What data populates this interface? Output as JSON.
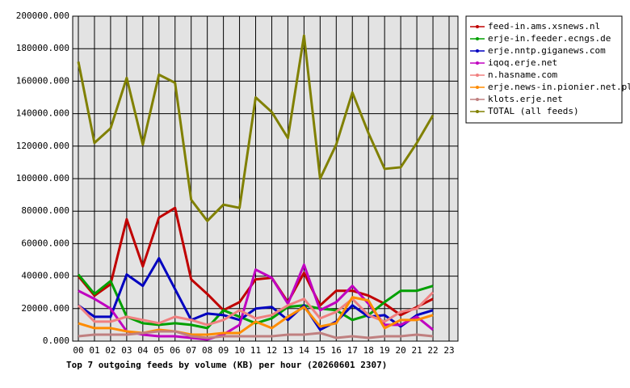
{
  "chart_data": {
    "type": "line",
    "title": "Top 7 outgoing feeds by volume (KB) per hour (20260601 2307)",
    "categories": [
      "00",
      "01",
      "02",
      "03",
      "04",
      "05",
      "06",
      "07",
      "08",
      "09",
      "10",
      "11",
      "12",
      "13",
      "14",
      "15",
      "16",
      "17",
      "18",
      "19",
      "20",
      "21",
      "22",
      "23"
    ],
    "ylim": [
      0,
      200000
    ],
    "yticks": [
      {
        "value": 0,
        "label": "0.000"
      },
      {
        "value": 20000,
        "label": "20000.000"
      },
      {
        "value": 40000,
        "label": "40000.000"
      },
      {
        "value": 60000,
        "label": "60000.000"
      },
      {
        "value": 80000,
        "label": "80000.000"
      },
      {
        "value": 100000,
        "label": "100000.000"
      },
      {
        "value": 120000,
        "label": "120000.000"
      },
      {
        "value": 140000,
        "label": "140000.000"
      },
      {
        "value": 160000,
        "label": "160000.000"
      },
      {
        "value": 180000,
        "label": "180000.000"
      },
      {
        "value": 200000,
        "label": "200000.000"
      }
    ],
    "grid": true,
    "legend": "right",
    "series": [
      {
        "name": "feed-in.ams.xsnews.nl",
        "color": "#c00000",
        "values": [
          40000,
          28000,
          35000,
          75000,
          46000,
          76000,
          82000,
          38000,
          29000,
          19000,
          24000,
          38000,
          39000,
          24000,
          42000,
          22000,
          31000,
          31000,
          28000,
          23000,
          16000,
          21000,
          26000,
          null
        ]
      },
      {
        "name": "erje-in.feeder.ecngs.de",
        "color": "#00a000",
        "values": [
          41000,
          29000,
          37000,
          15000,
          11000,
          10000,
          11000,
          10000,
          8000,
          19000,
          15000,
          11000,
          14000,
          21000,
          22000,
          20000,
          19000,
          13000,
          16000,
          24000,
          31000,
          31000,
          34000,
          null
        ]
      },
      {
        "name": "erje.nntp.giganews.com",
        "color": "#0000c0",
        "values": [
          22000,
          15000,
          15000,
          41000,
          34000,
          51000,
          32000,
          13000,
          17000,
          16000,
          13000,
          20000,
          21000,
          13000,
          22000,
          7000,
          12000,
          22000,
          15000,
          16000,
          9000,
          16000,
          19000,
          null
        ]
      },
      {
        "name": "iqoq.erje.net",
        "color": "#c000c0",
        "values": [
          31000,
          26000,
          20000,
          6000,
          4000,
          3000,
          3000,
          2000,
          1000,
          4000,
          10000,
          44000,
          39000,
          23000,
          47000,
          19000,
          24000,
          34000,
          23000,
          10000,
          10000,
          15000,
          7000,
          null
        ]
      },
      {
        "name": "n.hasname.com",
        "color": "#f08080",
        "values": [
          22000,
          12000,
          12000,
          15000,
          13000,
          11000,
          15000,
          13000,
          10000,
          13000,
          19000,
          14000,
          16000,
          22000,
          26000,
          14000,
          18000,
          26000,
          16000,
          12000,
          18000,
          20000,
          30000,
          null
        ]
      },
      {
        "name": "erje.news-in.pionier.net.pl",
        "color": "#ff8c00",
        "values": [
          11000,
          8000,
          8000,
          6000,
          5000,
          7000,
          6000,
          4000,
          4000,
          5000,
          5000,
          12000,
          8000,
          15000,
          21000,
          9000,
          11000,
          27000,
          25000,
          8000,
          13000,
          13000,
          16000,
          null
        ]
      },
      {
        "name": "klots.erje.net",
        "color": "#c08080",
        "values": [
          3000,
          4000,
          4000,
          4000,
          5000,
          6000,
          6000,
          3000,
          2000,
          3000,
          3000,
          3000,
          3000,
          4000,
          4000,
          5000,
          2000,
          3000,
          2000,
          3000,
          3000,
          4000,
          3000,
          null
        ]
      },
      {
        "name": "TOTAL (all feeds)",
        "color": "#808000",
        "values": [
          172000,
          122000,
          131000,
          162000,
          121000,
          164000,
          159000,
          87000,
          74000,
          84000,
          82000,
          150000,
          141000,
          125000,
          188000,
          100000,
          121000,
          153000,
          128000,
          106000,
          107000,
          122000,
          139000,
          null
        ]
      }
    ]
  }
}
